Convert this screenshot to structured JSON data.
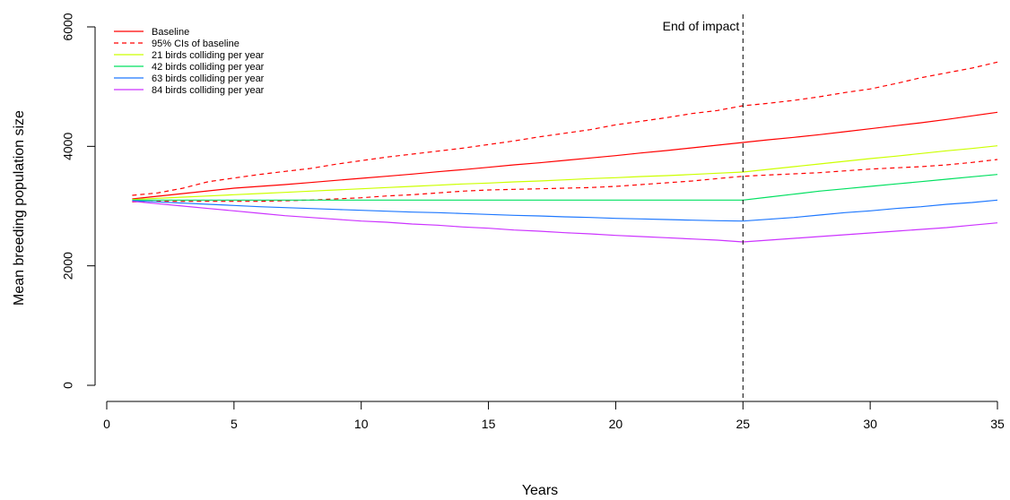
{
  "chart_data": {
    "type": "line",
    "title": "",
    "xlabel": "Years",
    "ylabel": "Mean breeding population size",
    "xlim": [
      0,
      35
    ],
    "ylim": [
      0,
      6000
    ],
    "xticks": [
      0,
      5,
      10,
      15,
      20,
      25,
      30,
      35
    ],
    "yticks": [
      0,
      2000,
      4000,
      6000
    ],
    "grid": false,
    "legend_position": "top-left",
    "x": [
      1,
      2,
      3,
      4,
      5,
      6,
      7,
      8,
      9,
      10,
      11,
      12,
      13,
      14,
      15,
      16,
      17,
      18,
      19,
      20,
      21,
      22,
      23,
      24,
      25,
      26,
      27,
      28,
      29,
      30,
      31,
      32,
      33,
      34,
      35
    ],
    "series": [
      {
        "name": "Baseline",
        "color": "#ff0000",
        "dash": "solid",
        "values": [
          3120,
          3165,
          3210,
          3255,
          3300,
          3330,
          3360,
          3395,
          3430,
          3465,
          3500,
          3535,
          3575,
          3610,
          3650,
          3690,
          3725,
          3765,
          3805,
          3845,
          3890,
          3930,
          3975,
          4020,
          4065,
          4110,
          4150,
          4195,
          4245,
          4295,
          4345,
          4395,
          4450,
          4510,
          4570
        ]
      },
      {
        "name": "95% CIs of baseline",
        "color": "#ff0000",
        "dash": "dashed",
        "values": [
          3180,
          3220,
          3300,
          3410,
          3470,
          3530,
          3580,
          3630,
          3700,
          3760,
          3820,
          3870,
          3920,
          3970,
          4030,
          4090,
          4160,
          4220,
          4280,
          4360,
          4420,
          4480,
          4550,
          4600,
          4680,
          4720,
          4770,
          4830,
          4900,
          4960,
          5050,
          5150,
          5230,
          5310,
          5410
        ]
      },
      {
        "name": "95% CIs of baseline lower",
        "color": "#ff0000",
        "dash": "dashed",
        "values": [
          3070,
          3080,
          3080,
          3080,
          3080,
          3080,
          3090,
          3100,
          3120,
          3140,
          3170,
          3190,
          3220,
          3250,
          3270,
          3280,
          3290,
          3300,
          3310,
          3330,
          3360,
          3390,
          3420,
          3460,
          3500,
          3520,
          3540,
          3560,
          3590,
          3620,
          3640,
          3660,
          3690,
          3730,
          3780
        ]
      },
      {
        "name": "21 birds colliding per year",
        "color": "#ccff00",
        "dash": "solid",
        "values": [
          3110,
          3130,
          3150,
          3170,
          3190,
          3210,
          3230,
          3250,
          3270,
          3290,
          3310,
          3330,
          3350,
          3370,
          3385,
          3405,
          3420,
          3440,
          3460,
          3475,
          3495,
          3510,
          3530,
          3550,
          3570,
          3615,
          3660,
          3705,
          3750,
          3795,
          3835,
          3880,
          3925,
          3965,
          4010
        ]
      },
      {
        "name": "42 birds colliding per year",
        "color": "#00e060",
        "dash": "solid",
        "values": [
          3100,
          3100,
          3100,
          3100,
          3100,
          3100,
          3100,
          3100,
          3100,
          3100,
          3100,
          3100,
          3100,
          3100,
          3100,
          3100,
          3100,
          3100,
          3100,
          3100,
          3100,
          3100,
          3100,
          3100,
          3100,
          3150,
          3200,
          3250,
          3290,
          3330,
          3370,
          3410,
          3450,
          3490,
          3530
        ]
      },
      {
        "name": "63 birds colliding per year",
        "color": "#1e78ff",
        "dash": "solid",
        "values": [
          3090,
          3070,
          3050,
          3030,
          3010,
          2990,
          2975,
          2960,
          2945,
          2930,
          2915,
          2900,
          2890,
          2875,
          2860,
          2845,
          2835,
          2820,
          2810,
          2795,
          2785,
          2775,
          2765,
          2755,
          2750,
          2780,
          2810,
          2850,
          2890,
          2920,
          2960,
          2990,
          3030,
          3060,
          3100
        ]
      },
      {
        "name": "84 birds colliding per year",
        "color": "#cc33ff",
        "dash": "solid",
        "values": [
          3080,
          3040,
          3000,
          2960,
          2920,
          2880,
          2840,
          2810,
          2780,
          2750,
          2730,
          2700,
          2680,
          2650,
          2630,
          2600,
          2580,
          2555,
          2535,
          2510,
          2490,
          2470,
          2450,
          2430,
          2400,
          2430,
          2460,
          2490,
          2520,
          2550,
          2580,
          2610,
          2640,
          2680,
          2720
        ]
      }
    ],
    "legend": [
      {
        "label": "Baseline",
        "color": "#ff0000",
        "dash": "solid"
      },
      {
        "label": "95% CIs of baseline",
        "color": "#ff0000",
        "dash": "dashed"
      },
      {
        "label": "21 birds colliding per year",
        "color": "#ccff00",
        "dash": "solid"
      },
      {
        "label": "42 birds colliding per year",
        "color": "#00e060",
        "dash": "solid"
      },
      {
        "label": "63 birds colliding per year",
        "color": "#1e78ff",
        "dash": "solid"
      },
      {
        "label": "84 birds colliding per year",
        "color": "#cc33ff",
        "dash": "solid"
      }
    ],
    "annotations": [
      {
        "text": "End of impact",
        "x": 25,
        "line": "vertical-dashed"
      }
    ]
  }
}
